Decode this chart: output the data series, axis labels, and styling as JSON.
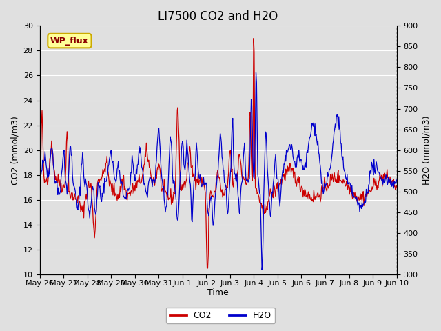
{
  "title": "LI7500 CO2 and H2O",
  "xlabel": "Time",
  "ylabel_left": "CO2 (mmol/m3)",
  "ylabel_right": "H2O (mmol/m3)",
  "co2_ylim": [
    10,
    30
  ],
  "h2o_ylim": [
    300,
    900
  ],
  "co2_yticks": [
    10,
    12,
    14,
    16,
    18,
    20,
    22,
    24,
    26,
    28,
    30
  ],
  "h2o_yticks": [
    300,
    350,
    400,
    450,
    500,
    550,
    600,
    650,
    700,
    750,
    800,
    850,
    900
  ],
  "co2_color": "#cc0000",
  "h2o_color": "#0000cc",
  "background_color": "#e0e0e0",
  "grid_color": "#ffffff",
  "annotation_text": "WP_flux",
  "annotation_color": "#8b0000",
  "annotation_bg": "#ffff99",
  "annotation_border": "#ccaa00",
  "title_fontsize": 12,
  "axis_fontsize": 9,
  "tick_fontsize": 8,
  "legend_fontsize": 9,
  "xtick_labels": [
    "May 26",
    "May 27",
    "May 28",
    "May 29",
    "May 30",
    "May 31",
    "Jun 1",
    "Jun 2",
    "Jun 3",
    "Jun 4",
    "Jun 5",
    "Jun 6",
    "Jun 7",
    "Jun 8",
    "Jun 9",
    "Jun 10"
  ],
  "n_points": 600
}
